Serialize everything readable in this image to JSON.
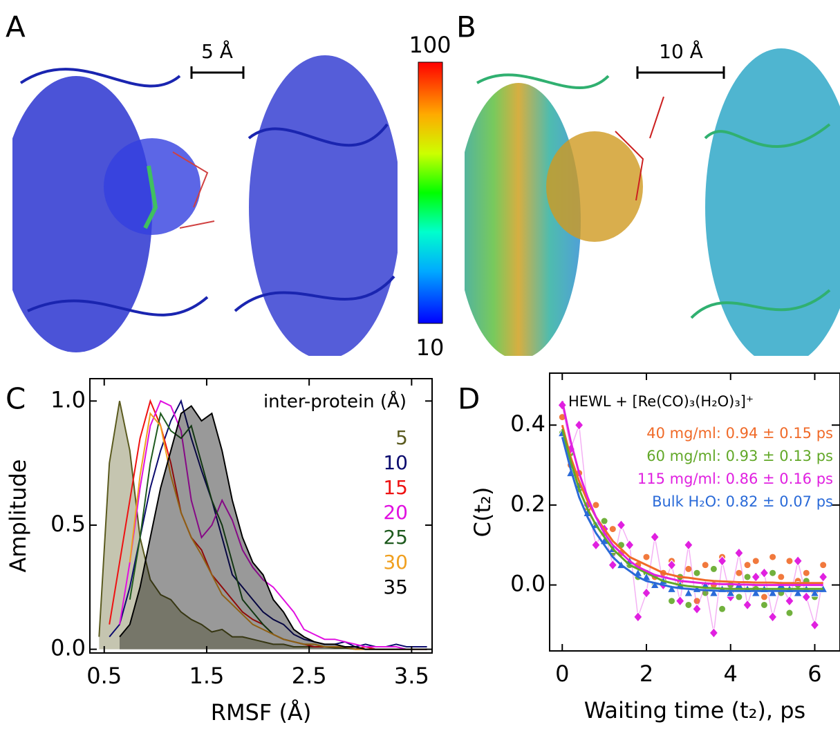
{
  "panels": {
    "a": "A",
    "b": "B",
    "c": "C",
    "d": "D"
  },
  "scale_bars": {
    "a": "5 Å",
    "b": "10 Å"
  },
  "colorbar": {
    "max": 100,
    "min": 10
  },
  "chart_data": [
    {
      "type": "line",
      "xlabel": "RMSF (Å)",
      "ylabel": "Amplitude",
      "legend_title": "inter-protein (Å)",
      "legend": "upper right",
      "xlim": [
        0.36,
        3.7
      ],
      "ylim": [
        -0.015,
        1.09
      ],
      "xticks": [
        0.5,
        1.5,
        2.5,
        3.5
      ],
      "yticks": [
        {
          "value": 0,
          "label": "0.0"
        },
        {
          "value": 0.5,
          "label": "0.5"
        },
        {
          "value": 1,
          "label": "1.0"
        }
      ],
      "x": [
        0.45,
        0.55,
        0.65,
        0.75,
        0.85,
        0.95,
        1.05,
        1.15,
        1.25,
        1.35,
        1.45,
        1.55,
        1.65,
        1.75,
        1.85,
        1.95,
        2.05,
        2.15,
        2.25,
        2.35,
        2.45,
        2.55,
        2.65,
        2.75,
        2.85,
        2.95,
        3.05,
        3.15,
        3.25,
        3.35,
        3.45,
        3.55,
        3.65
      ],
      "series": [
        {
          "name": "5",
          "color": "#5a5a1e",
          "fill": true,
          "values": [
            0.05,
            0.75,
            1.0,
            0.8,
            0.45,
            0.28,
            0.22,
            0.2,
            0.15,
            0.12,
            0.1,
            0.07,
            0.08,
            0.05,
            0.05,
            0.04,
            0.03,
            0.02,
            0.02,
            0.01,
            0.01,
            0.01,
            0.01,
            0.005,
            0.005,
            0,
            0,
            0,
            0,
            0,
            0,
            0,
            0
          ]
        },
        {
          "name": "10",
          "color": "#0b0b6e",
          "fill": false,
          "values": [
            null,
            0.05,
            0.1,
            0.25,
            0.45,
            0.65,
            0.8,
            0.92,
            1.0,
            0.85,
            0.72,
            0.6,
            0.45,
            0.3,
            0.25,
            0.2,
            0.15,
            0.12,
            0.1,
            0.06,
            0.04,
            0.03,
            0.02,
            0.02,
            0.03,
            0.01,
            0.02,
            0.01,
            0.01,
            0.02,
            0.01,
            0.01,
            0.01
          ]
        },
        {
          "name": "15",
          "color": "#ee1111",
          "fill": false,
          "values": [
            null,
            0.1,
            0.35,
            0.6,
            0.85,
            1.0,
            0.9,
            0.75,
            0.55,
            0.45,
            0.4,
            0.3,
            0.25,
            0.2,
            0.15,
            0.12,
            0.1,
            0.06,
            0.04,
            0.03,
            0.02,
            0.01,
            0.01,
            0.01,
            0.01,
            0,
            0.01,
            0,
            0,
            0,
            0,
            0,
            0
          ]
        },
        {
          "name": "20",
          "color": "#e010e0",
          "fill": false,
          "values": [
            null,
            null,
            0.1,
            0.35,
            0.65,
            0.9,
            1.0,
            0.98,
            0.88,
            0.6,
            0.45,
            0.5,
            0.6,
            0.52,
            0.4,
            0.33,
            0.28,
            0.25,
            0.2,
            0.15,
            0.08,
            0.06,
            0.04,
            0.04,
            0.03,
            0.02,
            0.01,
            0.01,
            0.01,
            0.01,
            0,
            0,
            0
          ]
        },
        {
          "name": "25",
          "color": "#1e5a1e",
          "fill": false,
          "values": [
            null,
            null,
            null,
            0.2,
            0.45,
            0.75,
            0.95,
            0.88,
            0.85,
            0.9,
            0.75,
            0.6,
            0.5,
            0.35,
            0.2,
            0.15,
            0.1,
            0.06,
            0.04,
            0.03,
            0.02,
            0.02,
            0.01,
            0.01,
            0.01,
            0,
            0,
            0,
            0,
            0,
            0,
            0,
            0
          ]
        },
        {
          "name": "30",
          "color": "#f0a020",
          "fill": false,
          "values": [
            null,
            null,
            null,
            0.35,
            0.7,
            0.95,
            0.9,
            0.7,
            0.55,
            0.45,
            0.38,
            0.3,
            0.22,
            0.18,
            0.14,
            0.1,
            0.08,
            0.06,
            0.04,
            0.03,
            0.02,
            0.02,
            0.01,
            0.01,
            0.01,
            0,
            0,
            0,
            0,
            0,
            0,
            0,
            0
          ]
        },
        {
          "name": "35",
          "color": "#000000",
          "fill": true,
          "values": [
            null,
            null,
            0.05,
            0.1,
            0.25,
            0.45,
            0.65,
            0.8,
            0.95,
            0.98,
            0.92,
            0.95,
            0.8,
            0.6,
            0.45,
            0.35,
            0.3,
            0.2,
            0.15,
            0.08,
            0.05,
            0.03,
            0.02,
            0.02,
            0.01,
            0.01,
            0,
            0,
            0,
            0,
            0,
            0,
            0
          ]
        }
      ]
    },
    {
      "type": "scatter",
      "xlabel": "Waiting time (t₂), ps",
      "ylabel": "C(t₂)",
      "legend_title": "HEWL + [Re(CO)₃(H₂O)₃]⁺",
      "legend": "upper right",
      "xlim": [
        -0.3,
        6.6
      ],
      "ylim": [
        -0.165,
        0.53
      ],
      "xticks": [
        0,
        2,
        4,
        6
      ],
      "yticks": [
        {
          "value": 0,
          "label": "0.0"
        },
        {
          "value": 0.2,
          "label": "0.2"
        },
        {
          "value": 0.4,
          "label": "0.4"
        }
      ],
      "x": [
        0,
        0.2,
        0.4,
        0.6,
        0.8,
        1.0,
        1.2,
        1.4,
        1.6,
        1.8,
        2.0,
        2.2,
        2.4,
        2.6,
        2.8,
        3.0,
        3.2,
        3.4,
        3.6,
        3.8,
        4.0,
        4.2,
        4.4,
        4.6,
        4.8,
        5.0,
        5.2,
        5.4,
        5.6,
        5.8,
        6.0,
        6.2
      ],
      "series": [
        {
          "name": "40 mg/ml: 0.94 ± 0.15 ps",
          "color": "#f06a28",
          "marker": "circle",
          "connect": false,
          "values": [
            0.42,
            0.3,
            0.28,
            0.19,
            0.2,
            0.13,
            0.14,
            0.08,
            0.1,
            0.05,
            0.07,
            0.02,
            0.03,
            0.06,
            0.01,
            0.04,
            -0.04,
            0.05,
            0.0,
            0.07,
            -0.02,
            0.03,
            0.05,
            0.06,
            -0.03,
            0.07,
            0.02,
            0.06,
            0.01,
            0.03,
            -0.02,
            0.05
          ],
          "fit": [
            0.4,
            0.32,
            0.26,
            0.21,
            0.17,
            0.14,
            0.11,
            0.09,
            0.07,
            0.06,
            0.05,
            0.04,
            0.03,
            0.025,
            0.02,
            0.018,
            0.015,
            0.012,
            0.01,
            0.009,
            0.008,
            0.007,
            0.007,
            0.006,
            0.006,
            0.006,
            0.005,
            0.005,
            0.005,
            0.005,
            0.005,
            0.005
          ]
        },
        {
          "name": "60 mg/ml: 0.93 ± 0.13 ps",
          "color": "#62a828",
          "marker": "circle",
          "connect": false,
          "values": [
            0.38,
            0.33,
            0.24,
            0.2,
            0.15,
            0.16,
            0.08,
            0.1,
            0.05,
            0.02,
            0.03,
            0.0,
            0.01,
            -0.04,
            0.02,
            -0.05,
            0.03,
            -0.02,
            0.04,
            -0.06,
            0.0,
            -0.03,
            0.02,
            -0.01,
            -0.05,
            0.03,
            -0.02,
            -0.07,
            0.0,
            0.01,
            -0.03,
            0.02
          ],
          "fit": [
            0.39,
            0.31,
            0.24,
            0.19,
            0.15,
            0.12,
            0.09,
            0.07,
            0.05,
            0.04,
            0.03,
            0.02,
            0.01,
            0.005,
            0,
            -0.003,
            -0.005,
            -0.007,
            -0.008,
            -0.009,
            -0.01,
            -0.01,
            -0.01,
            -0.01,
            -0.01,
            -0.01,
            -0.01,
            -0.01,
            -0.01,
            -0.01,
            -0.01,
            -0.01
          ]
        },
        {
          "name": "115 mg/ml: 0.86 ± 0.16 ps",
          "color": "#e020e0",
          "marker": "diamond",
          "connect": true,
          "values": [
            0.45,
            0.34,
            0.4,
            0.2,
            0.1,
            0.14,
            0.05,
            0.15,
            0.1,
            -0.08,
            -0.02,
            0.12,
            0.0,
            0.05,
            -0.04,
            0.1,
            -0.06,
            0.0,
            -0.12,
            0.06,
            -0.03,
            0.08,
            -0.05,
            0.02,
            0.03,
            -0.08,
            0.0,
            -0.04,
            0.06,
            -0.03,
            -0.1,
            0.02
          ],
          "fit": [
            0.46,
            0.36,
            0.28,
            0.22,
            0.17,
            0.13,
            0.1,
            0.08,
            0.06,
            0.045,
            0.035,
            0.025,
            0.02,
            0.015,
            0.01,
            0.008,
            0.006,
            0.004,
            0.003,
            0.002,
            0.002,
            0.001,
            0.001,
            0,
            0,
            0,
            0,
            0,
            0,
            0,
            0,
            0
          ]
        },
        {
          "name": "Bulk H₂O: 0.82 ± 0.07 ps",
          "color": "#2a6ad8",
          "marker": "triangle",
          "connect": false,
          "values": [
            0.38,
            0.28,
            0.25,
            0.18,
            0.15,
            0.11,
            0.09,
            0.05,
            0.06,
            0.03,
            0.02,
            0.0,
            0.01,
            -0.01,
            0.0,
            -0.02,
            -0.01,
            0.0,
            -0.02,
            -0.01,
            -0.02,
            0.0,
            -0.01,
            -0.02,
            -0.01,
            -0.02,
            0.0,
            -0.01,
            -0.02,
            -0.01,
            -0.02,
            -0.01
          ],
          "fit": [
            0.37,
            0.29,
            0.22,
            0.17,
            0.13,
            0.1,
            0.07,
            0.05,
            0.035,
            0.02,
            0.01,
            0.005,
            0,
            -0.005,
            -0.008,
            -0.01,
            -0.012,
            -0.013,
            -0.014,
            -0.015,
            -0.015,
            -0.015,
            -0.015,
            -0.015,
            -0.015,
            -0.015,
            -0.015,
            -0.015,
            -0.015,
            -0.015,
            -0.015,
            -0.015
          ]
        }
      ]
    }
  ]
}
